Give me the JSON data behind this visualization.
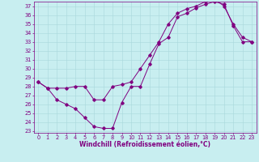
{
  "xlabel": "Windchill (Refroidissement éolien,°C)",
  "xlim": [
    -0.5,
    23.5
  ],
  "ylim": [
    22.8,
    37.5
  ],
  "xticks": [
    0,
    1,
    2,
    3,
    4,
    5,
    6,
    7,
    8,
    9,
    10,
    11,
    12,
    13,
    14,
    15,
    16,
    17,
    18,
    19,
    20,
    21,
    22,
    23
  ],
  "yticks": [
    23,
    24,
    25,
    26,
    27,
    28,
    29,
    30,
    31,
    32,
    33,
    34,
    35,
    36,
    37
  ],
  "bg_color": "#c8eef0",
  "line_color": "#800080",
  "grid_color": "#a8d8dc",
  "curve1_x": [
    0,
    1,
    2,
    3,
    4,
    5,
    6,
    7,
    8,
    9,
    10,
    11,
    12,
    13,
    14,
    15,
    16,
    17,
    18,
    19,
    20,
    21,
    22,
    23
  ],
  "curve1_y": [
    28.5,
    27.8,
    26.5,
    26.0,
    25.5,
    24.5,
    23.5,
    23.3,
    23.3,
    26.2,
    28.0,
    28.0,
    30.5,
    32.8,
    33.5,
    35.8,
    36.2,
    36.8,
    37.2,
    37.5,
    37.2,
    34.8,
    33.0,
    33.0
  ],
  "curve2_x": [
    0,
    1,
    2,
    3,
    4,
    5,
    6,
    7,
    8,
    9,
    10,
    11,
    12,
    13,
    14,
    15,
    16,
    17,
    18,
    19,
    20,
    21,
    22,
    23
  ],
  "curve2_y": [
    28.5,
    27.8,
    27.8,
    27.8,
    28.0,
    28.0,
    26.5,
    26.5,
    28.0,
    28.2,
    28.5,
    30.0,
    31.5,
    33.0,
    35.0,
    36.2,
    36.7,
    37.0,
    37.5,
    37.8,
    37.0,
    35.0,
    33.5,
    33.0
  ],
  "font_size_xlabel": 5.5,
  "tick_font_size": 4.8
}
